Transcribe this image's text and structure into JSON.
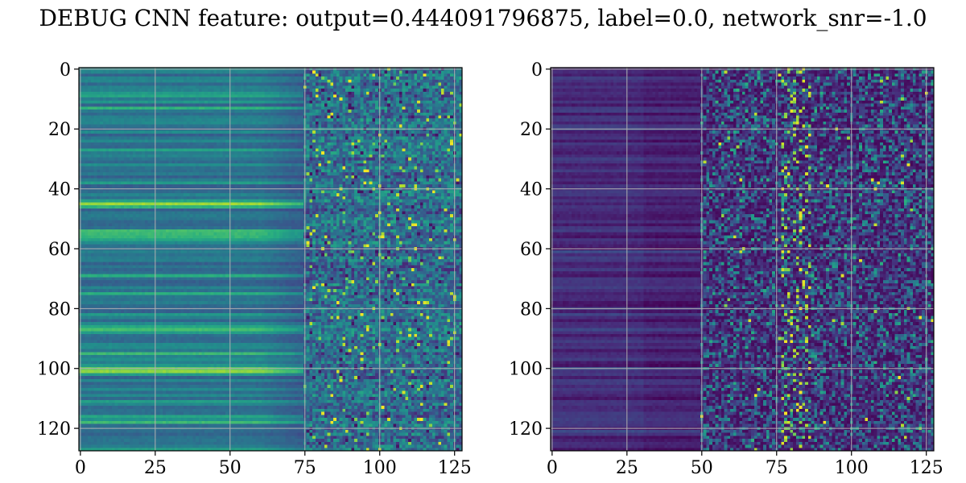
{
  "figure": {
    "title": "DEBUG CNN feature: output=0.444091796875, label=0.0, network_snr=-1.0"
  },
  "colormap": {
    "name": "viridis",
    "stops": [
      "#440154",
      "#472d7b",
      "#3b528b",
      "#2c728e",
      "#21918c",
      "#28ae80",
      "#5ec962",
      "#addc30",
      "#fde725"
    ]
  },
  "chart_data": [
    {
      "type": "heatmap",
      "panel": "left",
      "title": "",
      "xlabel": "",
      "ylabel": "",
      "rows": 128,
      "cols": 128,
      "xlim": [
        0,
        127
      ],
      "ylim": [
        127,
        0
      ],
      "x_ticks": [
        0,
        25,
        50,
        75,
        100,
        125
      ],
      "y_ticks": [
        0,
        20,
        40,
        60,
        80,
        100,
        120
      ],
      "grid": true,
      "colormap": "viridis",
      "description_of_values": "value range approx 0-1; left region (cols 0-75) smooth horizontal bands mostly teal/blue (~0.35-0.5) with bright green bands near rows 45, 55, 87, 100, 117; right region (cols 75-127) noisy speckled texture with scattered yellow-green pixels"
    },
    {
      "type": "heatmap",
      "panel": "right",
      "title": "",
      "xlabel": "",
      "ylabel": "",
      "rows": 128,
      "cols": 128,
      "xlim": [
        0,
        127
      ],
      "ylim": [
        127,
        0
      ],
      "x_ticks": [
        0,
        25,
        50,
        75,
        100,
        125
      ],
      "y_ticks": [
        0,
        20,
        40,
        60,
        80,
        100,
        120
      ],
      "grid": true,
      "colormap": "viridis",
      "description_of_values": "value range approx 0-1; left region (cols 0-50) dark purple/blue banded (~0.05-0.25); right region (cols 50-127) sparse noisy teal speckle with yellow hotspots around col 80-85"
    }
  ]
}
